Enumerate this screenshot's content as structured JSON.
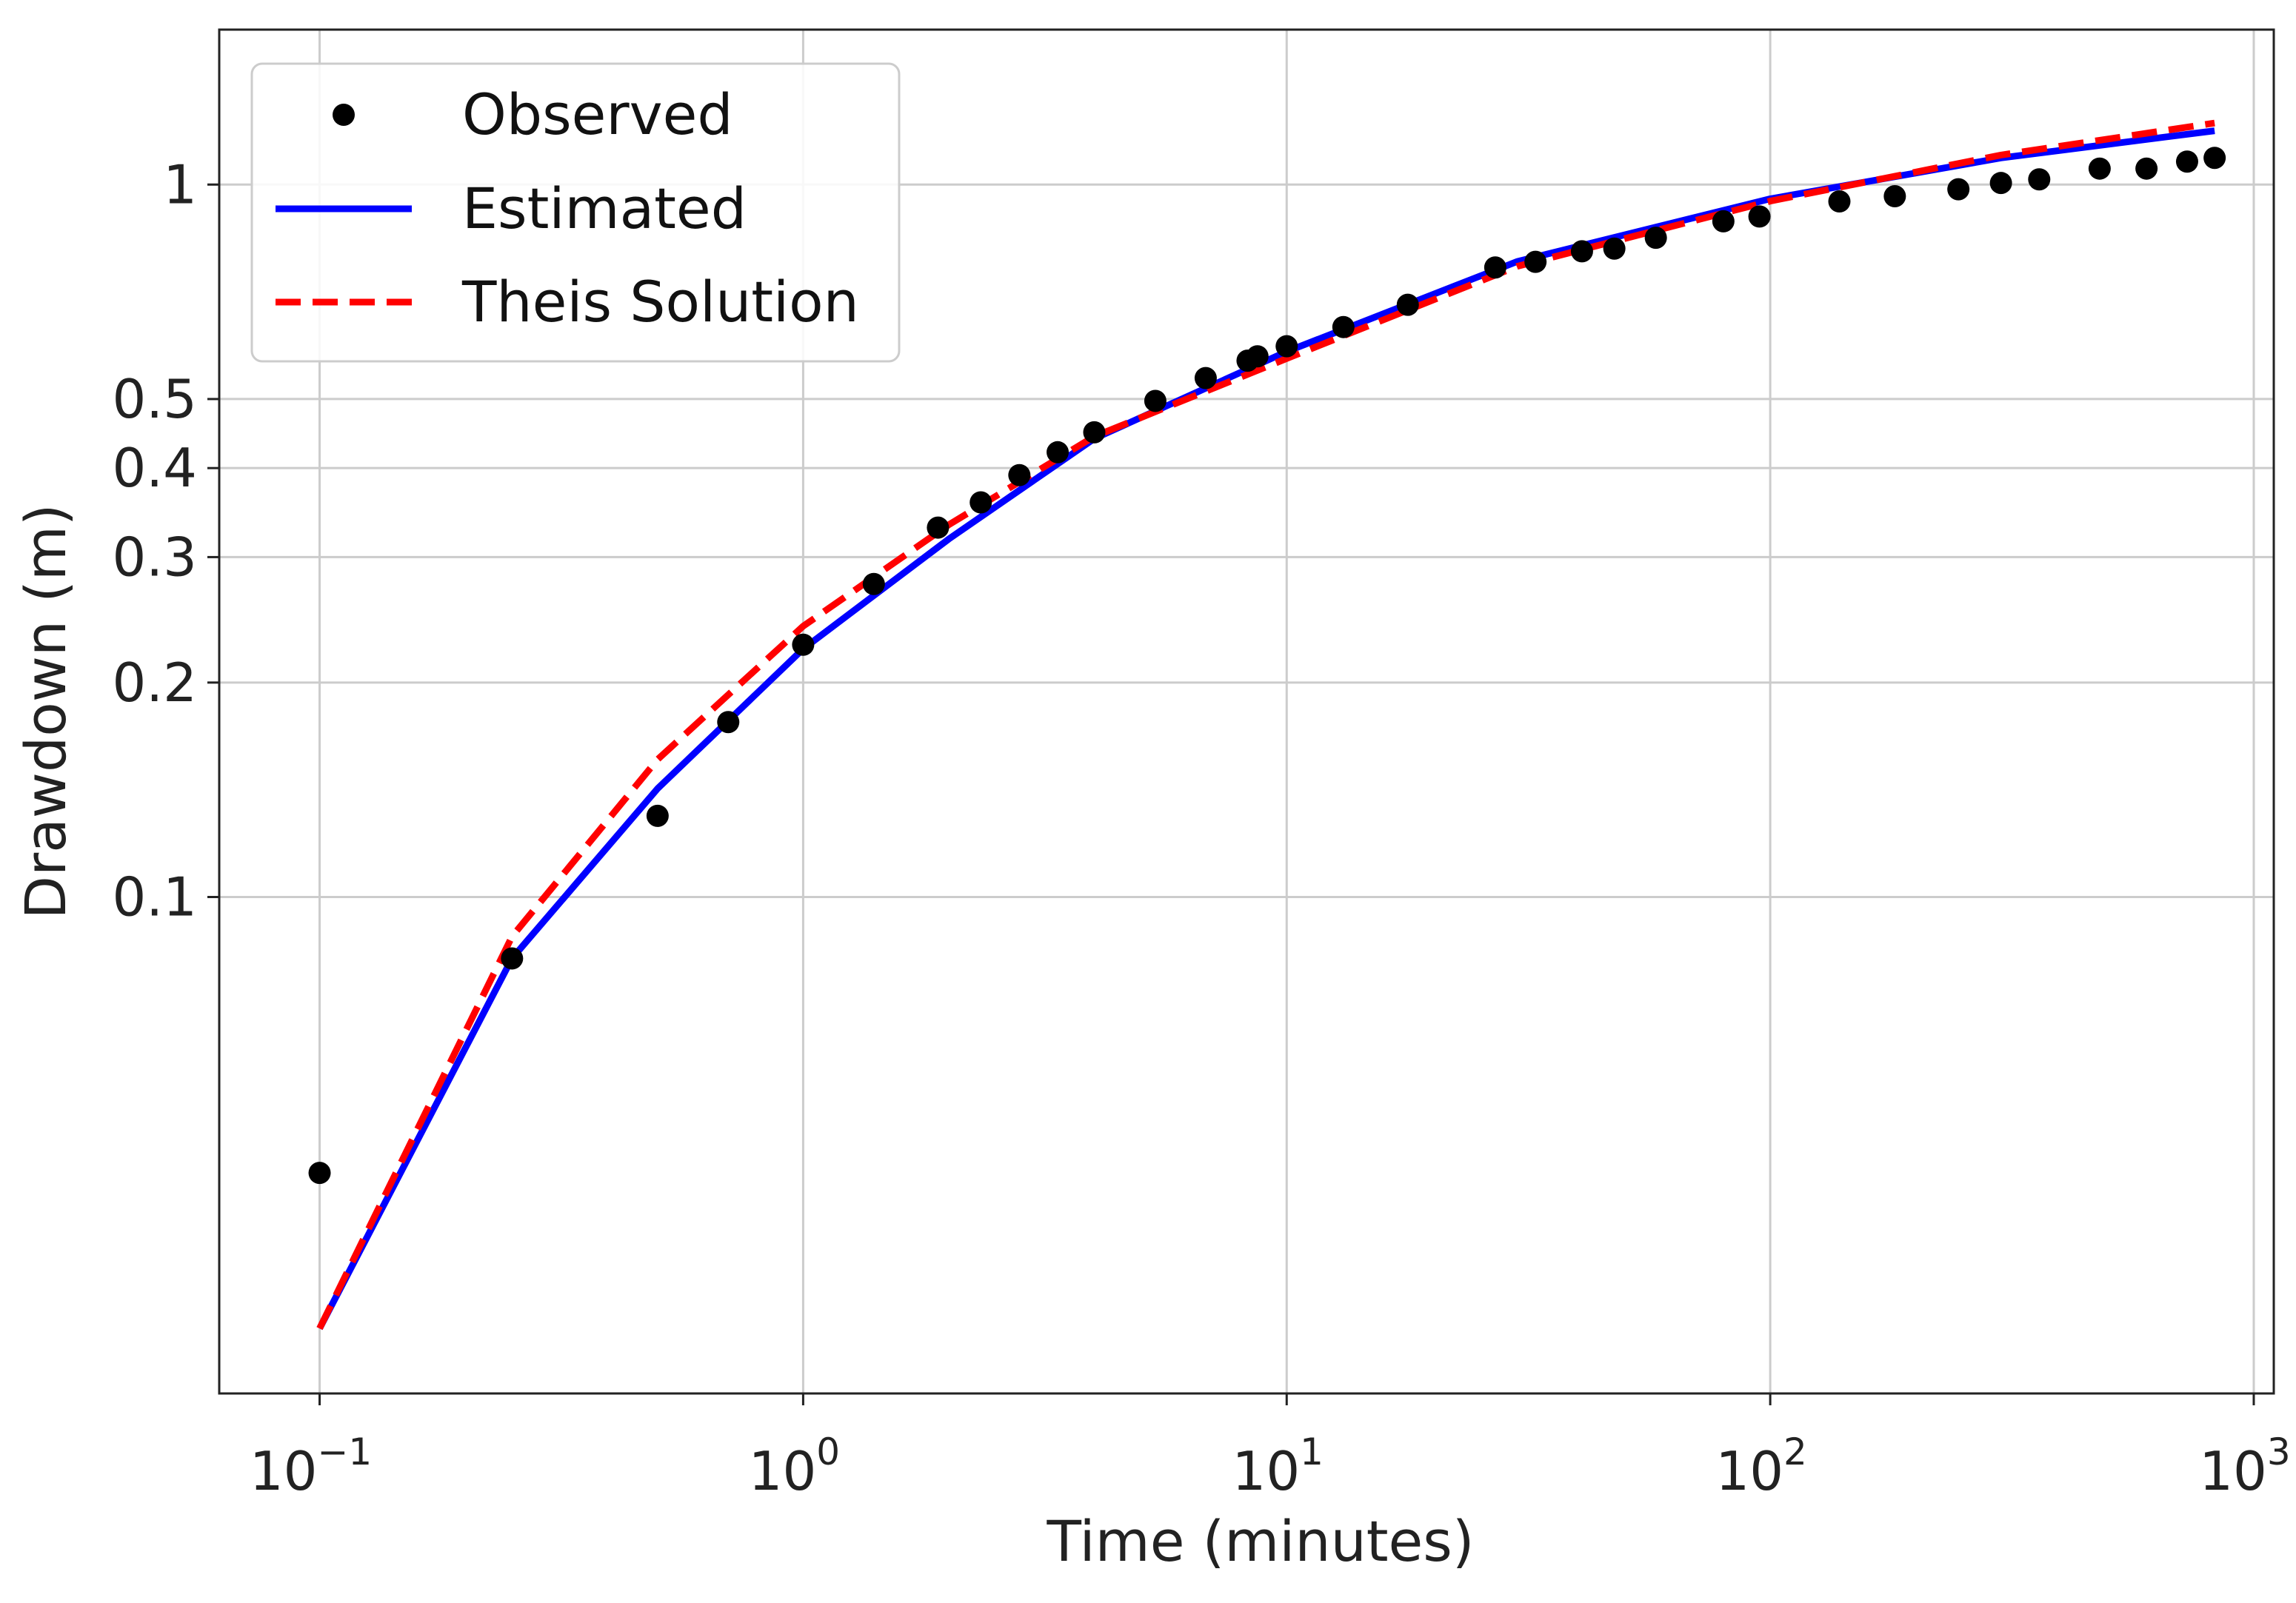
{
  "chart_data": {
    "type": "scatter",
    "xlabel": "Time (minutes)",
    "ylabel": "Drawdown (m)",
    "x_scale": "log",
    "y_scale": "log",
    "xlim": [
      0.062,
      1100
    ],
    "ylim": [
      0.0201,
      1.65
    ],
    "grid": true,
    "legend_position": "top-left",
    "x_ticks": [
      {
        "value": 0.1,
        "base": "10",
        "exp": "−1"
      },
      {
        "value": 1,
        "base": "10",
        "exp": "0"
      },
      {
        "value": 10,
        "base": "10",
        "exp": "1"
      },
      {
        "value": 100,
        "base": "10",
        "exp": "2"
      },
      {
        "value": 1000,
        "base": "10",
        "exp": "3"
      }
    ],
    "y_ticks": [
      {
        "value": 0.1,
        "label": "0.1"
      },
      {
        "value": 0.2,
        "label": "0.2"
      },
      {
        "value": 0.3,
        "label": "0.3"
      },
      {
        "value": 0.4,
        "label": "0.4"
      },
      {
        "value": 0.5,
        "label": "0.5"
      },
      {
        "value": 1,
        "label": "1"
      }
    ],
    "series": [
      {
        "name": "Observed",
        "kind": "points",
        "color": "#000000",
        "x": [
          0.1,
          0.25,
          0.5,
          0.7,
          1.0,
          1.4,
          1.9,
          2.33,
          2.8,
          3.36,
          4.0,
          5.35,
          6.8,
          8.3,
          8.7,
          10.0,
          13.1,
          17.8,
          27.0,
          32.7,
          40.8,
          47.6,
          58.0,
          80.0,
          95.0,
          139.0,
          181.0,
          245.0,
          300.0,
          360.0,
          480.0,
          600.0,
          728.0,
          830.0
        ],
        "y": [
          0.041,
          0.082,
          0.13,
          0.176,
          0.226,
          0.275,
          0.33,
          0.358,
          0.391,
          0.421,
          0.449,
          0.497,
          0.535,
          0.566,
          0.574,
          0.593,
          0.631,
          0.678,
          0.765,
          0.779,
          0.806,
          0.813,
          0.842,
          0.888,
          0.902,
          0.947,
          0.963,
          0.985,
          1.005,
          1.017,
          1.053,
          1.053,
          1.077,
          1.09
        ]
      },
      {
        "name": "Estimated",
        "kind": "line",
        "style": "solid",
        "color": "#0000ff",
        "x": [
          0.1,
          0.25,
          0.5,
          1.0,
          2.0,
          4.0,
          10.0,
          30.0,
          100.0,
          300.0,
          830.0
        ],
        "y": [
          0.0248,
          0.082,
          0.142,
          0.223,
          0.318,
          0.44,
          0.583,
          0.78,
          0.955,
          1.09,
          1.19
        ]
      },
      {
        "name": "Theis Solution",
        "kind": "line",
        "style": "dashed",
        "color": "#ff0000",
        "x": [
          0.1,
          0.25,
          0.5,
          1.0,
          2.0,
          4.0,
          10.0,
          30.0,
          100.0,
          300.0,
          830.0
        ],
        "y": [
          0.0248,
          0.088,
          0.156,
          0.24,
          0.333,
          0.443,
          0.57,
          0.768,
          0.948,
          1.1,
          1.22
        ]
      }
    ]
  }
}
